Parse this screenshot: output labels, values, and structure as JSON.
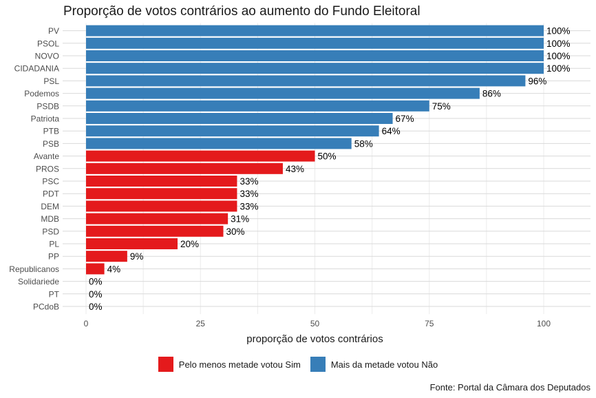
{
  "chart_data": {
    "type": "bar",
    "orientation": "horizontal",
    "title": "Proporção de votos contrários ao aumento do Fundo Eleitoral",
    "xlabel": "proporção de votos contrários",
    "ylabel": "",
    "xlim": [
      0,
      100
    ],
    "xticks": [
      0,
      25,
      50,
      75,
      100
    ],
    "grid": true,
    "legend_position": "bottom",
    "caption": "Fonte: Portal da Câmara dos Deputados",
    "value_suffix": "%",
    "categories": [
      "PV",
      "PSOL",
      "NOVO",
      "CIDADANIA",
      "PSL",
      "Podemos",
      "PSDB",
      "Patriota",
      "PTB",
      "PSB",
      "Avante",
      "PROS",
      "PSC",
      "PDT",
      "DEM",
      "MDB",
      "PSD",
      "PL",
      "PP",
      "Republicanos",
      "Solidariede",
      "PT",
      "PCdoB"
    ],
    "values": [
      100,
      100,
      100,
      100,
      96,
      86,
      75,
      67,
      64,
      58,
      50,
      43,
      33,
      33,
      33,
      31,
      30,
      20,
      9,
      4,
      0,
      0,
      0
    ],
    "groups": [
      "nao",
      "nao",
      "nao",
      "nao",
      "nao",
      "nao",
      "nao",
      "nao",
      "nao",
      "nao",
      "sim",
      "sim",
      "sim",
      "sim",
      "sim",
      "sim",
      "sim",
      "sim",
      "sim",
      "sim",
      "sim",
      "sim",
      "sim"
    ],
    "series": [
      {
        "key": "sim",
        "name": "Pelo menos metade votou Sim",
        "color": "#E41A1C"
      },
      {
        "key": "nao",
        "name": "Mais da metade votou Não",
        "color": "#377EB8"
      }
    ]
  }
}
